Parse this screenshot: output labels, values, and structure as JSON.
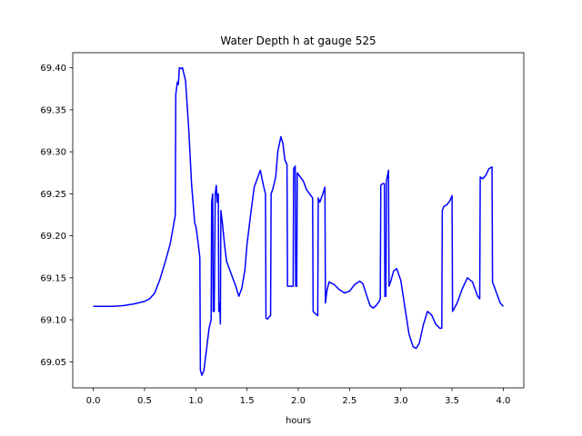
{
  "chart_data": {
    "type": "line",
    "title": "Water Depth h at gauge 525",
    "xlabel": "hours",
    "ylabel": "",
    "xlim": [
      -0.2,
      4.2
    ],
    "ylim": [
      69.019,
      69.418
    ],
    "x_ticks": [
      0.0,
      0.5,
      1.0,
      1.5,
      2.0,
      2.5,
      3.0,
      3.5,
      4.0
    ],
    "x_tick_labels": [
      "0.0",
      "0.5",
      "1.0",
      "1.5",
      "2.0",
      "2.5",
      "3.0",
      "3.5",
      "4.0"
    ],
    "y_ticks": [
      69.05,
      69.1,
      69.15,
      69.2,
      69.25,
      69.3,
      69.35,
      69.4
    ],
    "y_tick_labels": [
      "69.05",
      "69.10",
      "69.15",
      "69.20",
      "69.25",
      "69.30",
      "69.35",
      "69.40"
    ],
    "grid": false,
    "legend": "none",
    "series": [
      {
        "color": "#0000ff",
        "points": [
          [
            0.0,
            69.116
          ],
          [
            0.1,
            69.116
          ],
          [
            0.2,
            69.116
          ],
          [
            0.3,
            69.117
          ],
          [
            0.4,
            69.119
          ],
          [
            0.5,
            69.122
          ],
          [
            0.55,
            69.125
          ],
          [
            0.6,
            69.132
          ],
          [
            0.65,
            69.148
          ],
          [
            0.7,
            69.168
          ],
          [
            0.75,
            69.19
          ],
          [
            0.8,
            69.224
          ],
          [
            0.805,
            69.368
          ],
          [
            0.82,
            69.383
          ],
          [
            0.83,
            69.38
          ],
          [
            0.84,
            69.4
          ],
          [
            0.86,
            69.399
          ],
          [
            0.87,
            69.4
          ],
          [
            0.9,
            69.385
          ],
          [
            0.93,
            69.33
          ],
          [
            0.96,
            69.26
          ],
          [
            0.99,
            69.215
          ],
          [
            1.0,
            69.212
          ],
          [
            1.02,
            69.195
          ],
          [
            1.04,
            69.174
          ],
          [
            1.045,
            69.04
          ],
          [
            1.06,
            69.034
          ],
          [
            1.08,
            69.04
          ],
          [
            1.1,
            69.06
          ],
          [
            1.13,
            69.09
          ],
          [
            1.15,
            69.1
          ],
          [
            1.155,
            69.24
          ],
          [
            1.165,
            69.25
          ],
          [
            1.17,
            69.11
          ],
          [
            1.18,
            69.11
          ],
          [
            1.19,
            69.25
          ],
          [
            1.2,
            69.26
          ],
          [
            1.21,
            69.24
          ],
          [
            1.22,
            69.25
          ],
          [
            1.225,
            69.11
          ],
          [
            1.235,
            69.12
          ],
          [
            1.24,
            69.095
          ],
          [
            1.245,
            69.23
          ],
          [
            1.26,
            69.215
          ],
          [
            1.28,
            69.19
          ],
          [
            1.3,
            69.17
          ],
          [
            1.33,
            69.16
          ],
          [
            1.36,
            69.15
          ],
          [
            1.39,
            69.14
          ],
          [
            1.42,
            69.128
          ],
          [
            1.45,
            69.138
          ],
          [
            1.48,
            69.16
          ],
          [
            1.5,
            69.19
          ],
          [
            1.53,
            69.22
          ],
          [
            1.57,
            69.258
          ],
          [
            1.6,
            69.268
          ],
          [
            1.63,
            69.278
          ],
          [
            1.66,
            69.26
          ],
          [
            1.68,
            69.25
          ],
          [
            1.685,
            69.102
          ],
          [
            1.7,
            69.101
          ],
          [
            1.72,
            69.104
          ],
          [
            1.73,
            69.105
          ],
          [
            1.735,
            69.25
          ],
          [
            1.75,
            69.255
          ],
          [
            1.78,
            69.27
          ],
          [
            1.8,
            69.3
          ],
          [
            1.83,
            69.318
          ],
          [
            1.85,
            69.31
          ],
          [
            1.87,
            69.29
          ],
          [
            1.89,
            69.285
          ],
          [
            1.895,
            69.14
          ],
          [
            1.93,
            69.14
          ],
          [
            1.95,
            69.14
          ],
          [
            1.955,
            69.28
          ],
          [
            1.97,
            69.283
          ],
          [
            1.975,
            69.14
          ],
          [
            1.985,
            69.14
          ],
          [
            1.99,
            69.275
          ],
          [
            2.02,
            69.27
          ],
          [
            2.05,
            69.265
          ],
          [
            2.08,
            69.255
          ],
          [
            2.11,
            69.25
          ],
          [
            2.14,
            69.245
          ],
          [
            2.145,
            69.11
          ],
          [
            2.16,
            69.108
          ],
          [
            2.18,
            69.106
          ],
          [
            2.19,
            69.105
          ],
          [
            2.195,
            69.245
          ],
          [
            2.21,
            69.24
          ],
          [
            2.24,
            69.25
          ],
          [
            2.26,
            69.258
          ],
          [
            2.265,
            69.12
          ],
          [
            2.28,
            69.135
          ],
          [
            2.3,
            69.145
          ],
          [
            2.35,
            69.142
          ],
          [
            2.4,
            69.136
          ],
          [
            2.45,
            69.132
          ],
          [
            2.5,
            69.134
          ],
          [
            2.55,
            69.142
          ],
          [
            2.6,
            69.146
          ],
          [
            2.63,
            69.143
          ],
          [
            2.67,
            69.128
          ],
          [
            2.7,
            69.117
          ],
          [
            2.73,
            69.114
          ],
          [
            2.76,
            69.117
          ],
          [
            2.79,
            69.122
          ],
          [
            2.8,
            69.125
          ],
          [
            2.805,
            69.26
          ],
          [
            2.82,
            69.262
          ],
          [
            2.84,
            69.262
          ],
          [
            2.845,
            69.128
          ],
          [
            2.855,
            69.128
          ],
          [
            2.86,
            69.265
          ],
          [
            2.88,
            69.278
          ],
          [
            2.885,
            69.14
          ],
          [
            2.9,
            69.145
          ],
          [
            2.93,
            69.158
          ],
          [
            2.96,
            69.161
          ],
          [
            3.0,
            69.147
          ],
          [
            3.04,
            69.115
          ],
          [
            3.08,
            69.083
          ],
          [
            3.12,
            69.068
          ],
          [
            3.15,
            69.066
          ],
          [
            3.18,
            69.072
          ],
          [
            3.22,
            69.094
          ],
          [
            3.26,
            69.11
          ],
          [
            3.3,
            69.106
          ],
          [
            3.34,
            69.095
          ],
          [
            3.38,
            69.09
          ],
          [
            3.4,
            69.09
          ],
          [
            3.405,
            69.23
          ],
          [
            3.42,
            69.235
          ],
          [
            3.45,
            69.237
          ],
          [
            3.48,
            69.242
          ],
          [
            3.5,
            69.248
          ],
          [
            3.505,
            69.11
          ],
          [
            3.55,
            69.12
          ],
          [
            3.6,
            69.137
          ],
          [
            3.65,
            69.15
          ],
          [
            3.7,
            69.145
          ],
          [
            3.75,
            69.128
          ],
          [
            3.77,
            69.125
          ],
          [
            3.775,
            69.27
          ],
          [
            3.8,
            69.268
          ],
          [
            3.83,
            69.272
          ],
          [
            3.86,
            69.28
          ],
          [
            3.89,
            69.282
          ],
          [
            3.895,
            69.145
          ],
          [
            3.91,
            69.14
          ],
          [
            3.94,
            69.13
          ],
          [
            3.97,
            69.12
          ],
          [
            4.0,
            69.116
          ]
        ]
      }
    ]
  }
}
